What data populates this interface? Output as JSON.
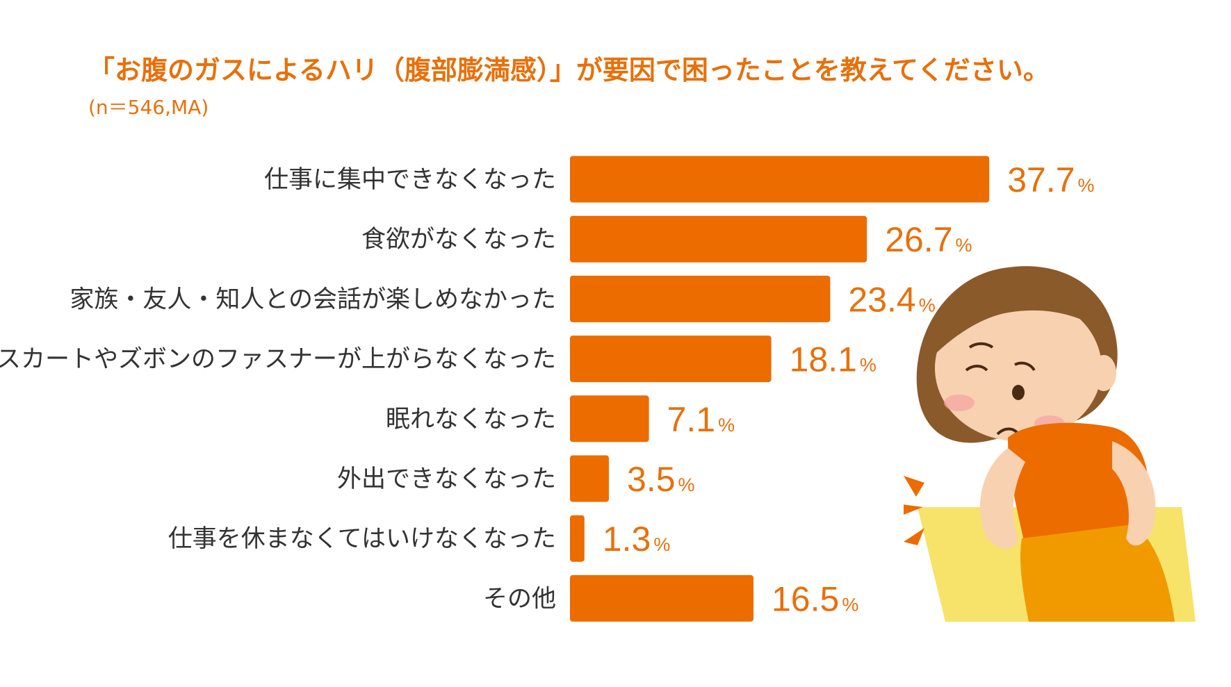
{
  "title": "「お腹のガスによるハリ（腹部膨満感）」が要因で困ったことを教えてください。",
  "subtitle": "(n＝546,MA)",
  "colors": {
    "bar": "#ec6c00",
    "accent": "#e8700a",
    "text": "#333333"
  },
  "chart_data": {
    "type": "bar",
    "orientation": "horizontal",
    "categories": [
      "仕事に集中できなくなった",
      "食欲がなくなった",
      "家族・友人・知人との会話が楽しめなかった",
      "スカートやズボンのファスナーが上がらなくなった",
      "眠れなくなった",
      "外出できなくなった",
      "仕事を休まなくてはいけなくなった",
      "その他"
    ],
    "values": [
      37.7,
      26.7,
      23.4,
      18.1,
      7.1,
      3.5,
      1.3,
      16.5
    ],
    "value_labels": [
      "37.7",
      "26.7",
      "23.4",
      "18.1",
      "7.1",
      "3.5",
      "1.3",
      "16.5"
    ],
    "unit": "%",
    "title": "「お腹のガスによるハリ（腹部膨満感）」が要因で困ったことを教えてください。",
    "grid": false,
    "legend": "none"
  }
}
